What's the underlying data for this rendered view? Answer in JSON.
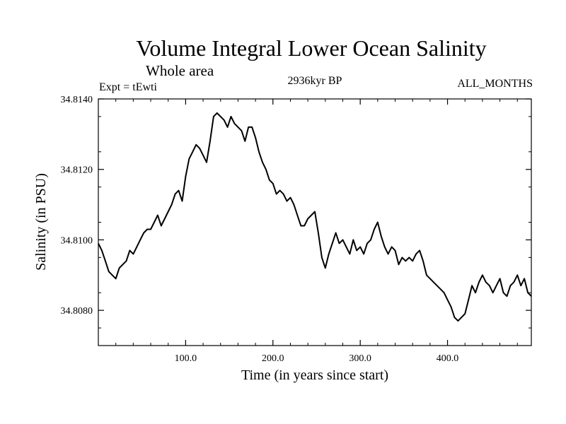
{
  "chart_data": {
    "type": "line",
    "title": "Volume Integral Lower Ocean Salinity",
    "subtitle": "Whole area",
    "experiment": "Expt = tEwti",
    "period": "2936kyr BP",
    "months": "ALL_MONTHS",
    "xlabel": "Time (in years since start)",
    "ylabel": "Salinity (in PSU)",
    "xlim": [
      0,
      496
    ],
    "ylim": [
      34.807,
      34.814
    ],
    "xticks": [
      100,
      200,
      300,
      400
    ],
    "xtick_labels": [
      "100.0",
      "200.0",
      "300.0",
      "400.0"
    ],
    "yticks": [
      34.808,
      34.81,
      34.812,
      34.814
    ],
    "ytick_labels": [
      "34.8080",
      "34.8100",
      "34.8120",
      "34.8140"
    ],
    "grid": false,
    "series": [
      {
        "name": "salinity",
        "x": [
          0,
          4,
          8,
          12,
          16,
          20,
          24,
          28,
          32,
          36,
          40,
          44,
          48,
          52,
          56,
          60,
          64,
          68,
          72,
          76,
          80,
          84,
          88,
          92,
          96,
          100,
          104,
          108,
          112,
          116,
          120,
          124,
          128,
          132,
          136,
          140,
          144,
          148,
          152,
          156,
          160,
          164,
          168,
          172,
          176,
          180,
          184,
          188,
          192,
          196,
          200,
          204,
          208,
          212,
          216,
          220,
          224,
          228,
          232,
          236,
          240,
          244,
          248,
          252,
          256,
          260,
          264,
          268,
          272,
          276,
          280,
          284,
          288,
          292,
          296,
          300,
          304,
          308,
          312,
          316,
          320,
          324,
          328,
          332,
          336,
          340,
          344,
          348,
          352,
          356,
          360,
          364,
          368,
          372,
          376,
          380,
          384,
          388,
          392,
          396,
          400,
          404,
          408,
          412,
          416,
          420,
          424,
          428,
          432,
          436,
          440,
          444,
          448,
          452,
          456,
          460,
          464,
          468,
          472,
          476,
          480,
          484,
          488,
          492,
          496
        ],
        "values": [
          34.8099,
          34.8097,
          34.8094,
          34.8091,
          34.809,
          34.8089,
          34.8092,
          34.8093,
          34.8094,
          34.8097,
          34.8096,
          34.8098,
          34.81,
          34.8102,
          34.8103,
          34.8103,
          34.8105,
          34.8107,
          34.8104,
          34.8106,
          34.8108,
          34.811,
          34.8113,
          34.8114,
          34.8111,
          34.8118,
          34.8123,
          34.8125,
          34.8127,
          34.8126,
          34.8124,
          34.8122,
          34.8128,
          34.8135,
          34.8136,
          34.8135,
          34.8134,
          34.8132,
          34.8135,
          34.8133,
          34.8132,
          34.8131,
          34.8128,
          34.8132,
          34.8132,
          34.8129,
          34.8125,
          34.8122,
          34.812,
          34.8117,
          34.8116,
          34.8113,
          34.8114,
          34.8113,
          34.8111,
          34.8112,
          34.811,
          34.8107,
          34.8104,
          34.8104,
          34.8106,
          34.8107,
          34.8108,
          34.8102,
          34.8095,
          34.8092,
          34.8096,
          34.8099,
          34.8102,
          34.8099,
          34.81,
          34.8098,
          34.8096,
          34.81,
          34.8097,
          34.8098,
          34.8096,
          34.8099,
          34.81,
          34.8103,
          34.8105,
          34.8101,
          34.8098,
          34.8096,
          34.8098,
          34.8097,
          34.8093,
          34.8095,
          34.8094,
          34.8095,
          34.8094,
          34.8096,
          34.8097,
          34.8094,
          34.809,
          34.8089,
          34.8088,
          34.8087,
          34.8086,
          34.8085,
          34.8083,
          34.8081,
          34.8078,
          34.8077,
          34.8078,
          34.8079,
          34.8083,
          34.8087,
          34.8085,
          34.8088,
          34.809,
          34.8088,
          34.8087,
          34.8085,
          34.8087,
          34.8089,
          34.8085,
          34.8084,
          34.8087,
          34.8088,
          34.809,
          34.8087,
          34.8089,
          34.8085,
          34.8084
        ]
      }
    ]
  }
}
